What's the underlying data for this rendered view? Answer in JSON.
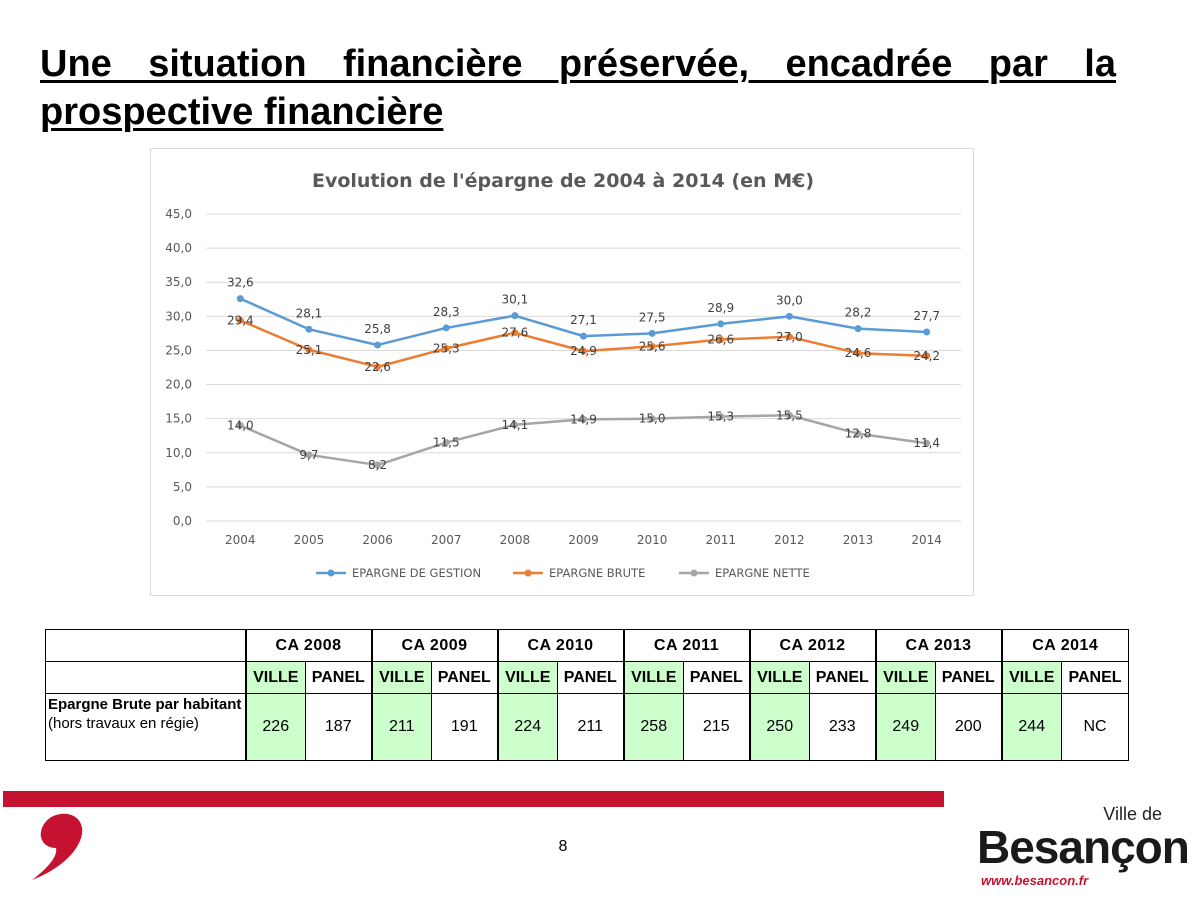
{
  "slide": {
    "title_line1": "Une situation financière préservée, encadrée par la",
    "title_line2": "prospective financière",
    "page_number": "8"
  },
  "chart_data": {
    "type": "line",
    "title": "Evolution de l'épargne de 2004 à 2014 (en M€)",
    "categories": [
      "2004",
      "2005",
      "2006",
      "2007",
      "2008",
      "2009",
      "2010",
      "2011",
      "2012",
      "2013",
      "2014"
    ],
    "series": [
      {
        "name": "EPARGNE DE GESTION",
        "color": "#5b9bd5",
        "values": [
          32.6,
          28.1,
          25.8,
          28.3,
          30.1,
          27.1,
          27.5,
          28.9,
          30.0,
          28.2,
          27.7
        ],
        "labels": [
          "32,6",
          "28,1",
          "25,8",
          "28,3",
          "30,1",
          "27,1",
          "27,5",
          "28,9",
          "30,0",
          "28,2",
          "27,7"
        ]
      },
      {
        "name": "EPARGNE BRUTE",
        "color": "#ed7d31",
        "values": [
          29.4,
          25.1,
          22.6,
          25.3,
          27.6,
          24.9,
          25.6,
          26.6,
          27.0,
          24.6,
          24.2
        ],
        "labels": [
          "29,4",
          "25,1",
          "22,6",
          "25,3",
          "27,6",
          "24,9",
          "25,6",
          "26,6",
          "27,0",
          "24,6",
          "24,2"
        ]
      },
      {
        "name": "EPARGNE NETTE",
        "color": "#a5a5a5",
        "values": [
          14.0,
          9.7,
          8.2,
          11.5,
          14.1,
          14.9,
          15.0,
          15.3,
          15.5,
          12.8,
          11.4
        ],
        "labels": [
          "14,0",
          "9,7",
          "8,2",
          "11,5",
          "14,1",
          "14,9",
          "15,0",
          "15,3",
          "15,5",
          "12,8",
          "11,4"
        ]
      }
    ],
    "y_ticks": [
      "0,0",
      "5,0",
      "10,0",
      "15,0",
      "20,0",
      "25,0",
      "30,0",
      "35,0",
      "40,0",
      "45,0"
    ],
    "ylim": [
      0,
      45
    ],
    "grid": true,
    "legend_position": "bottom"
  },
  "table": {
    "years": [
      "CA 2008",
      "CA 2009",
      "CA 2010",
      "CA 2011",
      "CA 2012",
      "CA 2013",
      "CA 2014"
    ],
    "sub_headers": {
      "ville": "VILLE",
      "panel": "PANEL"
    },
    "row_label_bold": "Epargne Brute par habitant",
    "row_label_rest": " (hors travaux en régie)",
    "ville_values": [
      "226",
      "211",
      "224",
      "258",
      "250",
      "249",
      "244"
    ],
    "panel_values": [
      "187",
      "191",
      "211",
      "215",
      "233",
      "200",
      "NC"
    ]
  },
  "branding": {
    "ville_de": "Ville de",
    "city": "Besançon",
    "url": "www.besancon.fr",
    "accent_color": "#c41230"
  }
}
